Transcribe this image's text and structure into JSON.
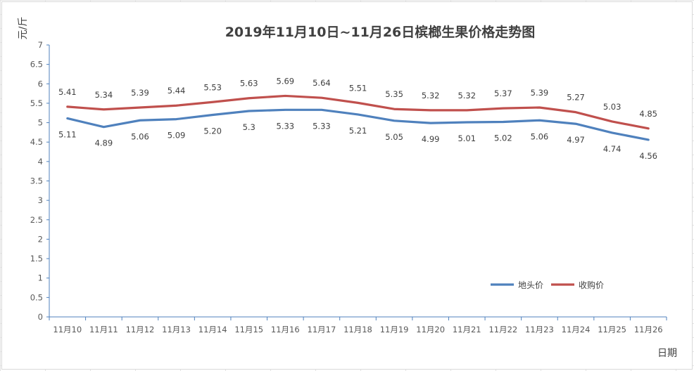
{
  "chart_data": {
    "type": "line",
    "title": "2019年11月10日~11月26日槟榔生果价格走势图",
    "xlabel": "日期",
    "ylabel": "元/斤",
    "ylim": [
      0,
      7
    ],
    "ytick_step": 0.5,
    "grid": false,
    "legend_position": "bottom-right",
    "categories": [
      "11月10",
      "11月11",
      "11月12",
      "11月13",
      "11月14",
      "11月15",
      "11月16",
      "11月17",
      "11月18",
      "11月19",
      "11月20",
      "11月21",
      "11月22",
      "11月23",
      "11月24",
      "11月25",
      "11月26"
    ],
    "series": [
      {
        "name": "地头价",
        "color": "#4f81bd",
        "values": [
          5.11,
          4.89,
          5.06,
          5.09,
          5.2,
          5.3,
          5.33,
          5.33,
          5.21,
          5.05,
          4.99,
          5.01,
          5.02,
          5.06,
          4.97,
          4.74,
          4.56
        ],
        "labels": [
          "5.11",
          "4.89",
          "5.06",
          "5.09",
          "5.20",
          "5.3",
          "5.33",
          "5.33",
          "5.21",
          "5.05",
          "4.99",
          "5.01",
          "5.02",
          "5.06",
          "4.97",
          "4.74",
          "4.56"
        ],
        "label_position": "below"
      },
      {
        "name": "收购价",
        "color": "#c0504d",
        "values": [
          5.41,
          5.34,
          5.39,
          5.44,
          5.53,
          5.63,
          5.69,
          5.64,
          5.51,
          5.35,
          5.32,
          5.32,
          5.37,
          5.39,
          5.27,
          5.03,
          4.85
        ],
        "labels": [
          "5.41",
          "5.34",
          "5.39",
          "5.44",
          "5.53",
          "5.63",
          "5.69",
          "5.64",
          "5.51",
          "5.35",
          "5.32",
          "5.32",
          "5.37",
          "5.39",
          "5.27",
          "5.03",
          "4.85"
        ],
        "label_position": "above"
      }
    ]
  }
}
